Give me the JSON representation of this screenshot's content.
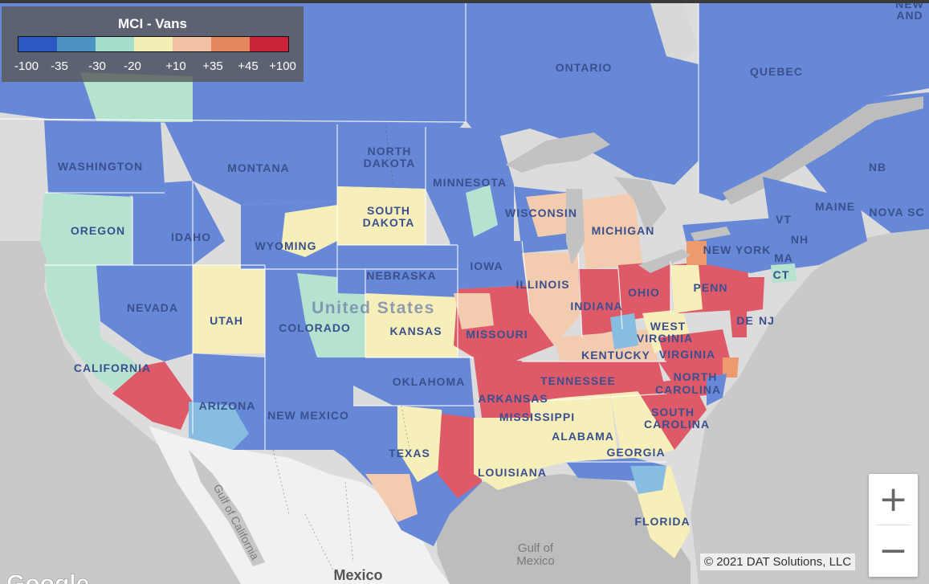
{
  "legend": {
    "title": "MCI - Vans",
    "ticks": [
      "-100",
      "-35",
      "-30",
      "-20",
      "+10",
      "+35",
      "+45",
      "+100"
    ],
    "colors": [
      "#2c58c4",
      "#4c93c4",
      "#a6dccb",
      "#f3eeb3",
      "#f1c1a4",
      "#e3855d",
      "#c82336"
    ]
  },
  "palette": {
    "blue": "#6688d6",
    "light_blue": "#86bde0",
    "mint": "#b6e2d0",
    "cream": "#f6efba",
    "peach": "#f3ccb0",
    "orange": "#ee9a6e",
    "red": "#de5a68",
    "land_gray": "#dedede",
    "water_gray": "#b9b9b9",
    "mexico_land": "#f1f1f1"
  },
  "map_labels": {
    "ontario": "ONTARIO",
    "quebec": "QUEBEC",
    "new": "NEW",
    "and": "AND",
    "nb": "NB",
    "nova_scotia": "NOVA SC",
    "maine": "MAINE",
    "vt": "VT",
    "nh": "NH",
    "ma": "MA",
    "ct": "CT",
    "nj": "NJ",
    "de": "DE",
    "new_york": "NEW YORK",
    "penn": "PENN",
    "washington": "WASHINGTON",
    "oregon": "OREGON",
    "california": "CALIFORNIA",
    "nevada": "NEVADA",
    "idaho": "IDAHO",
    "montana": "MONTANA",
    "wyoming": "WYOMING",
    "utah": "UTAH",
    "colorado": "COLORADO",
    "arizona": "ARIZONA",
    "new_mexico": "NEW MEXICO",
    "north_dakota_1": "NORTH",
    "north_dakota_2": "DAKOTA",
    "south_dakota_1": "SOUTH",
    "south_dakota_2": "DAKOTA",
    "nebraska": "NEBRASKA",
    "kansas_state": "KANSAS",
    "oklahoma": "OKLAHOMA",
    "texas": "TEXAS",
    "minnesota": "MINNESOTA",
    "iowa": "IOWA",
    "missouri": "MISSOURI",
    "arkansas": "ARKANSAS",
    "louisiana": "LOUISIANA",
    "wisconsin": "WISCONSIN",
    "illinois": "ILLINOIS",
    "michigan": "MICHIGAN",
    "indiana": "INDIANA",
    "ohio": "OHIO",
    "kentucky": "KENTUCKY",
    "tennessee": "TENNESSEE",
    "mississippi": "MISSISSIPPI",
    "alabama": "ALABAMA",
    "georgia": "GEORGIA",
    "florida": "FLORIDA",
    "west_virginia_1": "WEST",
    "west_virginia_2": "VIRGINIA",
    "virginia": "VIRGINIA",
    "north_carolina_1": "NORTH",
    "north_carolina_2": "CAROLINA",
    "south_carolina_1": "SOUTH",
    "south_carolina_2": "CAROLINA",
    "united_states": "United States",
    "gulf_of_california": "Gulf of California",
    "gulf_of_mexico_1": "Gulf of",
    "gulf_of_mexico_2": "Mexico",
    "mexico": "Mexico",
    "google": "Google"
  },
  "controls": {
    "zoom_in": "+",
    "zoom_out": "−",
    "copyright": "© 2021 DAT Solutions, LLC"
  }
}
